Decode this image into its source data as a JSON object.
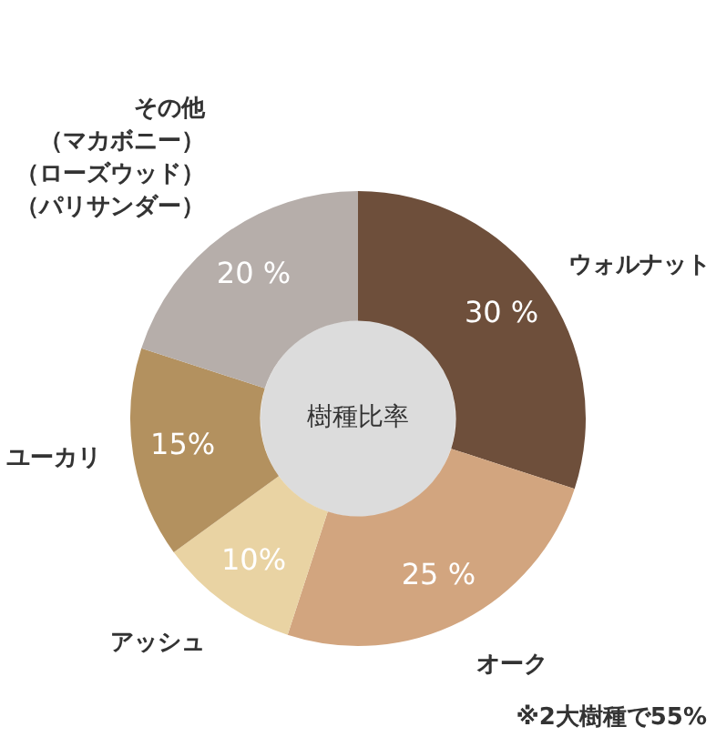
{
  "chart_data": {
    "type": "donut",
    "title": "樹種比率",
    "categories": [
      "ウォルナット",
      "オーク",
      "アッシュ",
      "ユーカリ",
      "その他（マカボニー）（ローズウッド）（パリサンダー）"
    ],
    "values": [
      30,
      25,
      10,
      15,
      20
    ],
    "value_labels": [
      "30 %",
      "25 %",
      "10%",
      "15%",
      "20 %"
    ],
    "colors": [
      "#6e4f3b",
      "#d2a57f",
      "#e9d3a3",
      "#b3915f",
      "#b6aeaa"
    ],
    "legend": false,
    "annotations": [
      "※2大樹種で55%"
    ]
  }
}
